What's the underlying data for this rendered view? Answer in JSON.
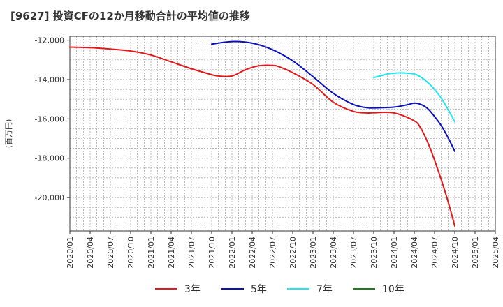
{
  "chart_data": {
    "type": "line",
    "title": "[9627]  投資CFの12か月移動合計の平均値の推移",
    "ylabel": "(百万円)",
    "xlabel": "",
    "ylim": [
      -21700,
      -11800
    ],
    "yticks": [
      -12000,
      -14000,
      -16000,
      -18000,
      -20000
    ],
    "ytick_labels": [
      "-12,000",
      "-14,000",
      "-16,000",
      "-18,000",
      "-20,000"
    ],
    "xticks": [
      "2020/01",
      "2020/04",
      "2020/07",
      "2020/10",
      "2021/01",
      "2021/04",
      "2021/07",
      "2021/10",
      "2022/01",
      "2022/04",
      "2022/07",
      "2022/10",
      "2023/01",
      "2023/04",
      "2023/07",
      "2023/10",
      "2024/01",
      "2024/04",
      "2024/07",
      "2024/10",
      "2025/01",
      "2025/04"
    ],
    "grid": true,
    "legend_position": "bottom",
    "series": [
      {
        "name": "3年",
        "color": "#e31a1c",
        "x": [
          "2020/01",
          "2020/04",
          "2020/07",
          "2020/10",
          "2021/01",
          "2021/04",
          "2021/07",
          "2021/10",
          "2021/11",
          "2022/01",
          "2022/03",
          "2022/05",
          "2022/07",
          "2022/08",
          "2022/10",
          "2023/01",
          "2023/04",
          "2023/07",
          "2023/09",
          "2023/10",
          "2024/01",
          "2024/04",
          "2024/05",
          "2024/06",
          "2024/07",
          "2024/08",
          "2024/09",
          "2024/10"
        ],
        "y": [
          -12350,
          -12380,
          -12450,
          -12550,
          -12750,
          -13100,
          -13450,
          -13750,
          -13820,
          -13820,
          -13500,
          -13300,
          -13280,
          -13350,
          -13650,
          -14250,
          -15150,
          -15620,
          -15700,
          -15690,
          -15700,
          -16100,
          -16500,
          -17200,
          -18100,
          -19100,
          -20200,
          -21450
        ]
      },
      {
        "name": "5年",
        "color": "#0a12b8",
        "x": [
          "2021/10",
          "2022/01",
          "2022/04",
          "2022/07",
          "2022/10",
          "2023/01",
          "2023/04",
          "2023/07",
          "2023/09",
          "2023/10",
          "2024/01",
          "2024/03",
          "2024/04",
          "2024/05",
          "2024/06",
          "2024/07",
          "2024/08",
          "2024/09",
          "2024/10"
        ],
        "y": [
          -12200,
          -12070,
          -12150,
          -12480,
          -13050,
          -13850,
          -14700,
          -15270,
          -15430,
          -15440,
          -15400,
          -15280,
          -15200,
          -15270,
          -15480,
          -15880,
          -16350,
          -16950,
          -17650
        ]
      },
      {
        "name": "7年",
        "color": "#22e5f2",
        "x": [
          "2023/10",
          "2023/12",
          "2024/01",
          "2024/02",
          "2024/04",
          "2024/05",
          "2024/06",
          "2024/07",
          "2024/08",
          "2024/09",
          "2024/10"
        ],
        "y": [
          -13900,
          -13720,
          -13680,
          -13660,
          -13720,
          -13880,
          -14150,
          -14500,
          -14950,
          -15520,
          -16150
        ]
      },
      {
        "name": "10年",
        "color": "#1a7f1a",
        "x": [],
        "y": []
      }
    ]
  }
}
